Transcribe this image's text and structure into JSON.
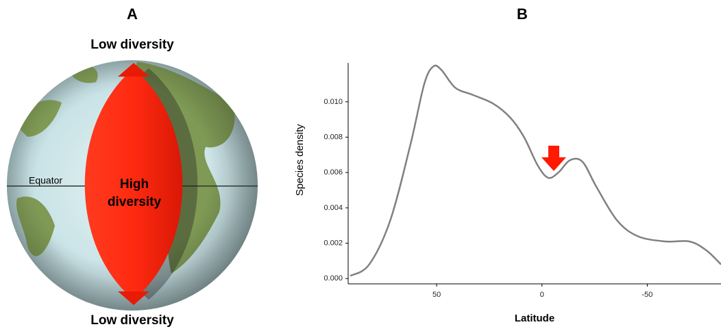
{
  "panel_a": {
    "label": "A",
    "top_label": "Low diversity",
    "bottom_label": "Low diversity",
    "equator": "Equator",
    "center_label": [
      "High",
      "diversity"
    ]
  },
  "chart_data": {
    "type": "line",
    "title": "B",
    "x_label": "Latitude",
    "y_label": "Species density",
    "x": [
      91,
      82,
      72,
      62.4,
      55.9,
      51.6,
      47.7,
      41.2,
      33,
      23.2,
      15,
      8.5,
      2,
      -3,
      -7.8,
      -13.4,
      -19.3,
      -25.8,
      -35.6,
      -45.4,
      -58.5,
      -70,
      -78,
      -85
    ],
    "series": [
      {
        "name": "Species density",
        "color": "#808080",
        "values": [
          0.00015,
          0.0008,
          0.0033,
          0.0076,
          0.011,
          0.012,
          0.0118,
          0.0108,
          0.0104,
          0.0099,
          0.0091,
          0.008,
          0.0064,
          0.0057,
          0.006,
          0.0067,
          0.0066,
          0.0052,
          0.0033,
          0.0024,
          0.0021,
          0.0021,
          0.0016,
          0.0008
        ]
      }
    ],
    "xlim": [
      92,
      -85
    ],
    "ylim": [
      -0.0003,
      0.0122
    ],
    "xticks": [
      50,
      0,
      -50
    ],
    "yticks": [
      {
        "value": 0,
        "label": "0.000"
      },
      {
        "value": 0.002,
        "label": "0.002"
      },
      {
        "value": 0.004,
        "label": "0.004"
      },
      {
        "value": 0.006,
        "label": "0.006"
      },
      {
        "value": 0.008,
        "label": "0.008"
      },
      {
        "value": 0.01,
        "label": "0.010"
      }
    ],
    "grid": false
  }
}
